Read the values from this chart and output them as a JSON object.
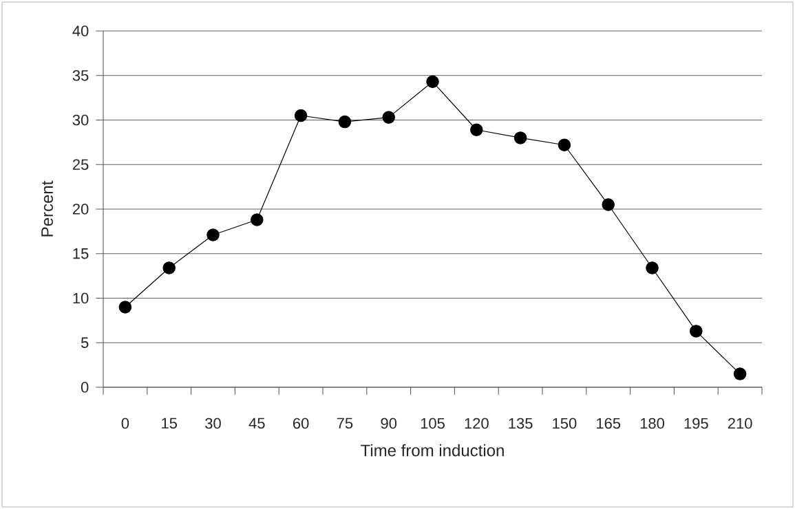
{
  "chart_data": {
    "type": "line",
    "xlabel": "Time from induction",
    "ylabel": "Percent",
    "categories": [
      "0",
      "15",
      "30",
      "45",
      "60",
      "75",
      "90",
      "105",
      "120",
      "135",
      "150",
      "165",
      "180",
      "195",
      "210"
    ],
    "series": [
      {
        "color": "#000000",
        "values": [
          9,
          13.4,
          17.1,
          18.8,
          30.5,
          29.8,
          30.3,
          34.3,
          28.9,
          28.0,
          27.2,
          20.5,
          13.4,
          6.3,
          1.5
        ]
      }
    ],
    "ylim": [
      0,
      40
    ],
    "yticks": [
      0,
      5,
      10,
      15,
      20,
      25,
      30,
      35,
      40
    ],
    "grid": "y",
    "marker": "circle",
    "line_style": "solid"
  }
}
